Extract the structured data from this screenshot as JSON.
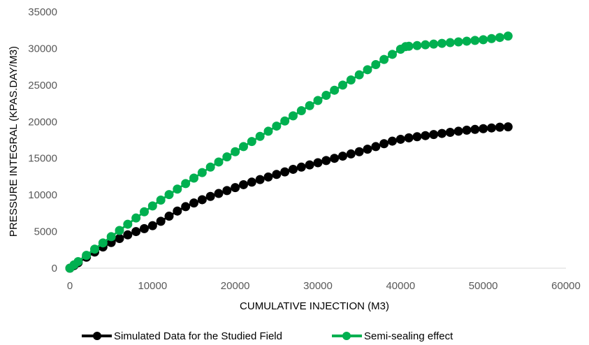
{
  "chart_data": {
    "type": "line",
    "title": "",
    "xlabel": "CUMULATIVE INJECTION (M3)",
    "ylabel": "PRESSURE INTEGRAL (KPAS.DAY/M3)",
    "xlim": [
      0,
      60000
    ],
    "ylim": [
      0,
      35000
    ],
    "x_ticks": [
      "0",
      "10000",
      "20000",
      "30000",
      "40000",
      "50000",
      "60000"
    ],
    "y_ticks": [
      "0",
      "5000",
      "10000",
      "15000",
      "20000",
      "25000",
      "30000",
      "35000"
    ],
    "grid": false,
    "legend_position": "bottom",
    "series": [
      {
        "name": "Simulated Data for the Studied Field",
        "color": "#000000",
        "points": [
          [
            0,
            0
          ],
          [
            500,
            350
          ],
          [
            1000,
            750
          ],
          [
            2000,
            1500
          ],
          [
            3000,
            2200
          ],
          [
            4000,
            2900
          ],
          [
            5000,
            3500
          ],
          [
            6000,
            4050
          ],
          [
            7000,
            4550
          ],
          [
            8000,
            5000
          ],
          [
            9000,
            5400
          ],
          [
            10000,
            5800
          ],
          [
            11000,
            6400
          ],
          [
            12000,
            7100
          ],
          [
            13000,
            7800
          ],
          [
            14000,
            8400
          ],
          [
            15000,
            8900
          ],
          [
            16000,
            9350
          ],
          [
            17000,
            9800
          ],
          [
            18000,
            10200
          ],
          [
            19000,
            10600
          ],
          [
            20000,
            11000
          ],
          [
            21000,
            11400
          ],
          [
            22000,
            11750
          ],
          [
            23000,
            12100
          ],
          [
            24000,
            12450
          ],
          [
            25000,
            12800
          ],
          [
            26000,
            13150
          ],
          [
            27000,
            13500
          ],
          [
            28000,
            13800
          ],
          [
            29000,
            14100
          ],
          [
            30000,
            14400
          ],
          [
            31000,
            14700
          ],
          [
            32000,
            15000
          ],
          [
            33000,
            15300
          ],
          [
            34000,
            15600
          ],
          [
            35000,
            15900
          ],
          [
            36000,
            16250
          ],
          [
            37000,
            16600
          ],
          [
            38000,
            17000
          ],
          [
            39000,
            17350
          ],
          [
            40000,
            17600
          ],
          [
            41000,
            17800
          ],
          [
            42000,
            17950
          ],
          [
            43000,
            18100
          ],
          [
            44000,
            18250
          ],
          [
            45000,
            18400
          ],
          [
            46000,
            18550
          ],
          [
            47000,
            18700
          ],
          [
            48000,
            18850
          ],
          [
            49000,
            18950
          ],
          [
            50000,
            19050
          ],
          [
            51000,
            19150
          ],
          [
            52000,
            19250
          ],
          [
            53000,
            19300
          ]
        ]
      },
      {
        "name": "Semi-sealing effect",
        "color": "#00B050",
        "points": [
          [
            0,
            0
          ],
          [
            500,
            450
          ],
          [
            1000,
            900
          ],
          [
            2000,
            1750
          ],
          [
            3000,
            2600
          ],
          [
            4000,
            3450
          ],
          [
            5000,
            4300
          ],
          [
            6000,
            5150
          ],
          [
            7000,
            6000
          ],
          [
            8000,
            6850
          ],
          [
            9000,
            7700
          ],
          [
            10000,
            8500
          ],
          [
            11000,
            9300
          ],
          [
            12000,
            10050
          ],
          [
            13000,
            10800
          ],
          [
            14000,
            11550
          ],
          [
            15000,
            12300
          ],
          [
            16000,
            13050
          ],
          [
            17000,
            13800
          ],
          [
            18000,
            14500
          ],
          [
            19000,
            15200
          ],
          [
            20000,
            15900
          ],
          [
            21000,
            16600
          ],
          [
            22000,
            17300
          ],
          [
            23000,
            18000
          ],
          [
            24000,
            18700
          ],
          [
            25000,
            19400
          ],
          [
            26000,
            20100
          ],
          [
            27000,
            20800
          ],
          [
            28000,
            21500
          ],
          [
            29000,
            22200
          ],
          [
            30000,
            22900
          ],
          [
            31000,
            23600
          ],
          [
            32000,
            24300
          ],
          [
            33000,
            25000
          ],
          [
            34000,
            25700
          ],
          [
            35000,
            26400
          ],
          [
            36000,
            27100
          ],
          [
            37000,
            27800
          ],
          [
            38000,
            28500
          ],
          [
            39000,
            29200
          ],
          [
            40000,
            29900
          ],
          [
            40600,
            30250
          ],
          [
            41000,
            30300
          ],
          [
            42000,
            30400
          ],
          [
            43000,
            30500
          ],
          [
            44000,
            30600
          ],
          [
            45000,
            30700
          ],
          [
            46000,
            30800
          ],
          [
            47000,
            30900
          ],
          [
            48000,
            31000
          ],
          [
            49000,
            31100
          ],
          [
            50000,
            31200
          ],
          [
            51000,
            31350
          ],
          [
            52000,
            31500
          ],
          [
            53000,
            31700
          ]
        ]
      }
    ]
  }
}
